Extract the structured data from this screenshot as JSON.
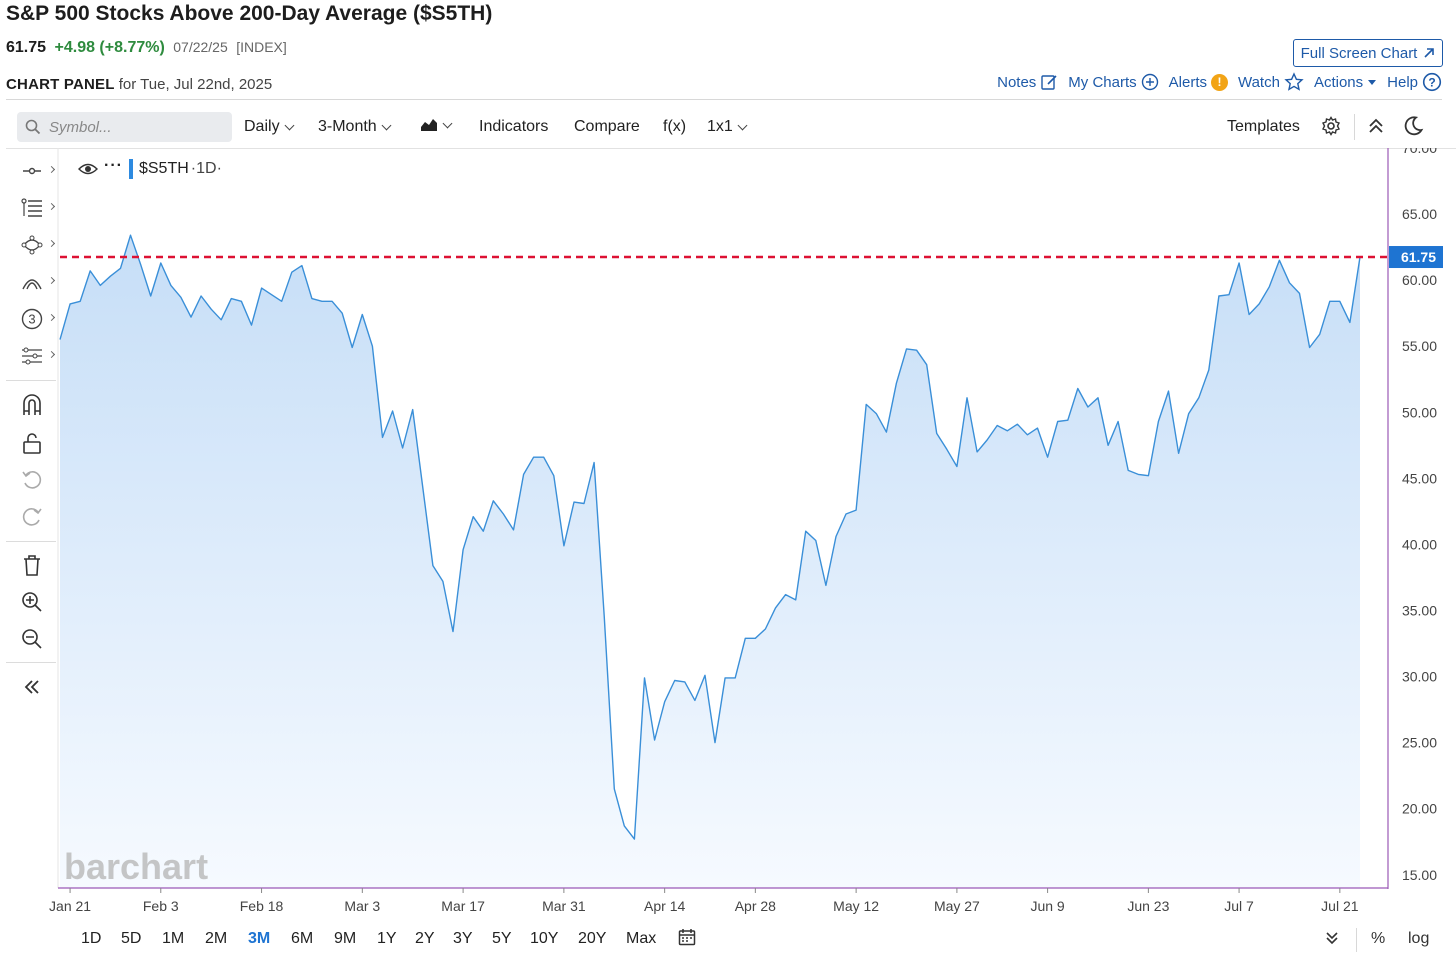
{
  "header": {
    "title": "S&P 500 Stocks Above 200-Day Average ($S5TH)",
    "last": "61.75",
    "change": "+4.98 (+8.77%)",
    "date": "07/22/25",
    "type": "[INDEX]",
    "fullscreen_label": "Full Screen Chart",
    "panel_label": "CHART PANEL",
    "panel_date": "for Tue, Jul 22nd, 2025"
  },
  "links": {
    "notes": "Notes",
    "my_charts": "My Charts",
    "alerts": "Alerts",
    "watch": "Watch",
    "actions": "Actions",
    "help": "Help"
  },
  "toolbar": {
    "symbol_placeholder": "Symbol...",
    "interval": "Daily",
    "period": "3-Month",
    "indicators": "Indicators",
    "compare": "Compare",
    "fx": "f(x)",
    "layout": "1x1",
    "templates": "Templates"
  },
  "legend": {
    "symbol": "$S5TH",
    "interval": "·1D·"
  },
  "watermark": "barchart",
  "colors": {
    "line": "#3a8fd8",
    "fill_top": "#c8e0f8",
    "ref_line": "#dd1133",
    "price_tag": "#1e74d2",
    "axis_right": "#9b59b6"
  },
  "chart_data": {
    "type": "area",
    "title": "S&P 500 Stocks Above 200-Day Average ($S5TH)",
    "xlabel": "",
    "ylabel": "",
    "ylim": [
      14,
      70
    ],
    "y_ticks": [
      "70.00",
      "65.00",
      "60.00",
      "55.00",
      "50.00",
      "45.00",
      "40.00",
      "35.00",
      "30.00",
      "25.00",
      "20.00",
      "15.00"
    ],
    "x_ticks": [
      "Jan 21",
      "Feb 3",
      "Feb 18",
      "Mar 3",
      "Mar 17",
      "Mar 31",
      "Apr 14",
      "Apr 28",
      "May 12",
      "May 27",
      "Jun 9",
      "Jun 23",
      "Jul 7",
      "Jul 21"
    ],
    "last_value": "61.75",
    "reference_value": 61.75,
    "values": [
      55.5,
      58.2,
      58.4,
      60.7,
      59.6,
      60.3,
      60.9,
      63.4,
      61.2,
      58.8,
      61.3,
      59.6,
      58.7,
      57.2,
      58.8,
      57.8,
      57.0,
      58.6,
      58.4,
      56.6,
      59.4,
      58.9,
      58.4,
      60.6,
      61.1,
      58.6,
      58.4,
      58.4,
      57.5,
      54.9,
      57.4,
      55.0,
      48.1,
      50.1,
      47.3,
      50.2,
      44.3,
      38.4,
      37.2,
      33.4,
      39.6,
      42.1,
      41.0,
      43.3,
      42.3,
      41.1,
      45.3,
      46.6,
      46.6,
      45.2,
      39.9,
      43.2,
      43.1,
      46.2,
      34.6,
      21.5,
      18.7,
      17.7,
      29.9,
      25.2,
      28.1,
      29.7,
      29.6,
      28.2,
      30.1,
      25.0,
      29.9,
      29.9,
      32.9,
      32.9,
      33.6,
      35.2,
      36.2,
      35.8,
      41.0,
      40.3,
      36.9,
      40.6,
      42.3,
      42.6,
      50.6,
      49.9,
      48.5,
      52.2,
      54.8,
      54.7,
      53.6,
      48.4,
      47.2,
      45.9,
      51.1,
      47.0,
      47.9,
      49.0,
      48.6,
      49.1,
      48.3,
      48.8,
      46.6,
      49.3,
      49.4,
      51.8,
      50.4,
      51.1,
      47.5,
      49.3,
      45.6,
      45.3,
      45.2,
      49.3,
      51.6,
      46.9,
      49.9,
      51.1,
      53.2,
      58.8,
      58.9,
      61.3,
      57.4,
      58.2,
      59.5,
      61.5,
      59.8,
      59.0,
      54.9,
      55.9,
      58.4,
      58.4,
      56.8,
      61.75
    ]
  },
  "ranges": [
    "1D",
    "5D",
    "1M",
    "2M",
    "3M",
    "6M",
    "9M",
    "1Y",
    "2Y",
    "3Y",
    "5Y",
    "10Y",
    "20Y",
    "Max"
  ],
  "active_range": "3M",
  "bottom_right": {
    "percent": "%",
    "log": "log"
  }
}
